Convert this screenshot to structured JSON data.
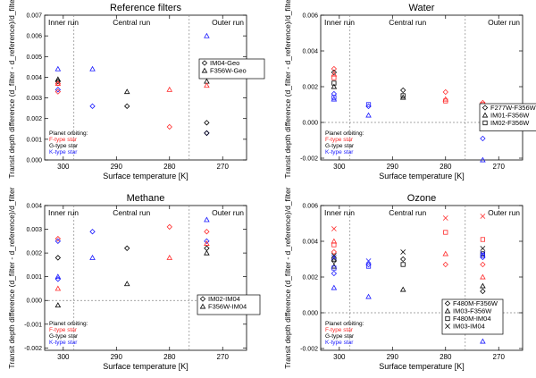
{
  "chart_data": [
    {
      "type": "scatter",
      "title": "Reference filters",
      "xlabel": "Surface temperature [K]",
      "ylabel": "Transit depth difference (d_filter - d_reference)/d_filter",
      "xlim": [
        303.5,
        265.5
      ],
      "ylim": [
        0,
        0.007
      ],
      "xticks": [
        {
          "v": 300,
          "label": "300"
        },
        {
          "v": 290,
          "label": "290"
        },
        {
          "v": 280,
          "label": "280"
        },
        {
          "v": 270,
          "label": "270"
        }
      ],
      "yticks": [
        {
          "v": 0,
          "label": "0.000"
        },
        {
          "v": 0.001,
          "label": "0.001"
        },
        {
          "v": 0.002,
          "label": "0.002"
        },
        {
          "v": 0.003,
          "label": "0.003"
        },
        {
          "v": 0.004,
          "label": "0.004"
        },
        {
          "v": 0.005,
          "label": "0.005"
        },
        {
          "v": 0.006,
          "label": "0.006"
        },
        {
          "v": 0.007,
          "label": "0.007"
        }
      ],
      "zero_line": false,
      "regions": [
        {
          "name": "Inner run",
          "from": 303.5,
          "to": 298
        },
        {
          "name": "Central run",
          "from": 298,
          "to": 276.3
        },
        {
          "name": "Outer run",
          "from": 276.3,
          "to": 265.5
        }
      ],
      "legend_label": "Planet orbiting:",
      "star_types": [
        {
          "name": "F-type star",
          "color": "#ff2a2a"
        },
        {
          "name": "G-type star",
          "color": "#000000"
        },
        {
          "name": "K-type star",
          "color": "#1a1aff"
        }
      ],
      "series": [
        {
          "name": "IM04-Geo",
          "marker": "diamond",
          "points": [
            {
              "x": 301,
              "y": 0.0037,
              "c": "F"
            },
            {
              "x": 301,
              "y": 0.0038,
              "c": "G"
            },
            {
              "x": 301,
              "y": 0.0034,
              "c": "K"
            },
            {
              "x": 301,
              "y": 0.0033,
              "c": "F"
            },
            {
              "x": 294.5,
              "y": 0.0026,
              "c": "K"
            },
            {
              "x": 288,
              "y": 0.0026,
              "c": "G"
            },
            {
              "x": 280,
              "y": 0.0016,
              "c": "F"
            },
            {
              "x": 273,
              "y": 0.0018,
              "c": "G"
            },
            {
              "x": 273,
              "y": 0.0013,
              "c": "K"
            },
            {
              "x": 273,
              "y": 0.0013,
              "c": "G"
            }
          ]
        },
        {
          "name": "F356W-Geo",
          "marker": "triangle",
          "points": [
            {
              "x": 301,
              "y": 0.0044,
              "c": "K"
            },
            {
              "x": 301,
              "y": 0.0039,
              "c": "G"
            },
            {
              "x": 301,
              "y": 0.0037,
              "c": "F"
            },
            {
              "x": 294.5,
              "y": 0.0044,
              "c": "K"
            },
            {
              "x": 288,
              "y": 0.0033,
              "c": "G"
            },
            {
              "x": 280,
              "y": 0.0034,
              "c": "F"
            },
            {
              "x": 273,
              "y": 0.006,
              "c": "K"
            },
            {
              "x": 273,
              "y": 0.0038,
              "c": "G"
            },
            {
              "x": 273,
              "y": 0.0036,
              "c": "F"
            }
          ]
        }
      ]
    },
    {
      "type": "scatter",
      "title": "Water",
      "xlabel": "Surface temperature [K]",
      "ylabel": "Transit depth difference (d_filter - d_reference)/d_filter",
      "xlim": [
        303.5,
        265.5
      ],
      "ylim": [
        -0.0021,
        0.006
      ],
      "xticks": [
        {
          "v": 300,
          "label": "300"
        },
        {
          "v": 290,
          "label": "290"
        },
        {
          "v": 280,
          "label": "280"
        },
        {
          "v": 270,
          "label": "270"
        }
      ],
      "yticks": [
        {
          "v": -0.002,
          "label": "-0.002"
        },
        {
          "v": 0,
          "label": "0.000"
        },
        {
          "v": 0.002,
          "label": "0.002"
        },
        {
          "v": 0.004,
          "label": "0.004"
        },
        {
          "v": 0.006,
          "label": "0.006"
        }
      ],
      "zero_line": true,
      "regions": [
        {
          "name": "Inner run",
          "from": 303.5,
          "to": 298
        },
        {
          "name": "Central run",
          "from": 298,
          "to": 276.3
        },
        {
          "name": "Outer run",
          "from": 276.3,
          "to": 265.5
        }
      ],
      "legend_label": "Planet orbiting:",
      "star_types": [
        {
          "name": "F-type star",
          "color": "#ff2a2a"
        },
        {
          "name": "G-type star",
          "color": "#000000"
        },
        {
          "name": "K-type star",
          "color": "#1a1aff"
        }
      ],
      "series": [
        {
          "name": "F277W-F356W",
          "marker": "diamond",
          "points": [
            {
              "x": 301,
              "y": 0.003,
              "c": "F"
            },
            {
              "x": 301,
              "y": 0.0028,
              "c": "G"
            },
            {
              "x": 301,
              "y": 0.0016,
              "c": "K"
            },
            {
              "x": 294.5,
              "y": 0.0009,
              "c": "K"
            },
            {
              "x": 288,
              "y": 0.0018,
              "c": "G"
            },
            {
              "x": 280,
              "y": 0.0017,
              "c": "F"
            },
            {
              "x": 273,
              "y": 0.0011,
              "c": "F"
            },
            {
              "x": 273,
              "y": 0.0005,
              "c": "G"
            },
            {
              "x": 273,
              "y": -0.0009,
              "c": "K"
            }
          ]
        },
        {
          "name": "IM01-F356W",
          "marker": "triangle",
          "points": [
            {
              "x": 301,
              "y": 0.0027,
              "c": "F"
            },
            {
              "x": 301,
              "y": 0.002,
              "c": "G"
            },
            {
              "x": 301,
              "y": 0.0013,
              "c": "K"
            },
            {
              "x": 294.5,
              "y": 0.0004,
              "c": "K"
            },
            {
              "x": 288,
              "y": 0.0014,
              "c": "G"
            },
            {
              "x": 280,
              "y": 0.0013,
              "c": "F"
            },
            {
              "x": 273,
              "y": 0.0008,
              "c": "F"
            },
            {
              "x": 273,
              "y": 0.0001,
              "c": "G"
            },
            {
              "x": 273,
              "y": -0.0021,
              "c": "K"
            }
          ]
        },
        {
          "name": "IM02-F356W",
          "marker": "square",
          "points": [
            {
              "x": 301,
              "y": 0.0025,
              "c": "F"
            },
            {
              "x": 301,
              "y": 0.0022,
              "c": "G"
            },
            {
              "x": 301,
              "y": 0.0014,
              "c": "K"
            },
            {
              "x": 294.5,
              "y": 0.001,
              "c": "K"
            },
            {
              "x": 288,
              "y": 0.0015,
              "c": "G"
            },
            {
              "x": 280,
              "y": 0.0012,
              "c": "F"
            },
            {
              "x": 273,
              "y": 0.001,
              "c": "F"
            },
            {
              "x": 273,
              "y": 0.0007,
              "c": "G"
            },
            {
              "x": 273,
              "y": 0.0006,
              "c": "K"
            }
          ]
        }
      ]
    },
    {
      "type": "scatter",
      "title": "Methane",
      "xlabel": "Surface temperature [K]",
      "ylabel": "Transit depth difference (d_filter - d_reference)/d_filter",
      "xlim": [
        303.5,
        265.5
      ],
      "ylim": [
        -0.0021,
        0.004
      ],
      "xticks": [
        {
          "v": 300,
          "label": "300"
        },
        {
          "v": 290,
          "label": "290"
        },
        {
          "v": 280,
          "label": "280"
        },
        {
          "v": 270,
          "label": "270"
        }
      ],
      "yticks": [
        {
          "v": -0.002,
          "label": "-0.002"
        },
        {
          "v": -0.001,
          "label": "-0.001"
        },
        {
          "v": 0,
          "label": "0.000"
        },
        {
          "v": 0.001,
          "label": "0.001"
        },
        {
          "v": 0.002,
          "label": "0.002"
        },
        {
          "v": 0.003,
          "label": "0.003"
        },
        {
          "v": 0.004,
          "label": "0.004"
        }
      ],
      "zero_line": true,
      "regions": [
        {
          "name": "Inner run",
          "from": 303.5,
          "to": 298
        },
        {
          "name": "Central run",
          "from": 298,
          "to": 276.3
        },
        {
          "name": "Outer run",
          "from": 276.3,
          "to": 265.5
        }
      ],
      "legend_label": "Planet orbiting:",
      "star_types": [
        {
          "name": "F-type star",
          "color": "#ff2a2a"
        },
        {
          "name": "G-type star",
          "color": "#000000"
        },
        {
          "name": "K-type star",
          "color": "#1a1aff"
        }
      ],
      "series": [
        {
          "name": "IM02-IM04",
          "marker": "diamond",
          "points": [
            {
              "x": 301,
              "y": 0.0026,
              "c": "F"
            },
            {
              "x": 301,
              "y": 0.0025,
              "c": "K"
            },
            {
              "x": 301,
              "y": 0.0018,
              "c": "G"
            },
            {
              "x": 301,
              "y": 0.0009,
              "c": "K"
            },
            {
              "x": 294.5,
              "y": 0.0029,
              "c": "K"
            },
            {
              "x": 288,
              "y": 0.0022,
              "c": "G"
            },
            {
              "x": 280,
              "y": 0.0031,
              "c": "F"
            },
            {
              "x": 273,
              "y": 0.0029,
              "c": "F"
            },
            {
              "x": 273,
              "y": 0.0022,
              "c": "G"
            },
            {
              "x": 273,
              "y": 0.0025,
              "c": "K"
            }
          ]
        },
        {
          "name": "F356W-IM04",
          "marker": "triangle",
          "points": [
            {
              "x": 301,
              "y": 0.001,
              "c": "K"
            },
            {
              "x": 301,
              "y": 0.0005,
              "c": "F"
            },
            {
              "x": 301,
              "y": -0.0002,
              "c": "G"
            },
            {
              "x": 294.5,
              "y": 0.0018,
              "c": "K"
            },
            {
              "x": 288,
              "y": 0.0007,
              "c": "G"
            },
            {
              "x": 280,
              "y": 0.0018,
              "c": "F"
            },
            {
              "x": 273,
              "y": 0.0024,
              "c": "F"
            },
            {
              "x": 273,
              "y": 0.002,
              "c": "G"
            },
            {
              "x": 273,
              "y": 0.0034,
              "c": "K"
            }
          ]
        }
      ]
    },
    {
      "type": "scatter",
      "title": "Ozone",
      "xlabel": "Surface temperature [K]",
      "ylabel": "Transit depth difference (d_filter - d_reference)/d_filter",
      "xlim": [
        303.5,
        265.5
      ],
      "ylim": [
        -0.0021,
        0.006
      ],
      "xticks": [
        {
          "v": 300,
          "label": "300"
        },
        {
          "v": 290,
          "label": "290"
        },
        {
          "v": 280,
          "label": "280"
        },
        {
          "v": 270,
          "label": "270"
        }
      ],
      "yticks": [
        {
          "v": -0.002,
          "label": "-0.002"
        },
        {
          "v": 0,
          "label": "0.000"
        },
        {
          "v": 0.002,
          "label": "0.002"
        },
        {
          "v": 0.004,
          "label": "0.004"
        },
        {
          "v": 0.006,
          "label": "0.006"
        }
      ],
      "zero_line": true,
      "regions": [
        {
          "name": "Inner run",
          "from": 303.5,
          "to": 298
        },
        {
          "name": "Central run",
          "from": 298,
          "to": 276.3
        },
        {
          "name": "Outer run",
          "from": 276.3,
          "to": 265.5
        }
      ],
      "legend_label": "Planet orbiting:",
      "star_types": [
        {
          "name": "F-type star",
          "color": "#ff2a2a"
        },
        {
          "name": "G-type star",
          "color": "#000000"
        },
        {
          "name": "K-type star",
          "color": "#1a1aff"
        }
      ],
      "series": [
        {
          "name": "F480M-F356W",
          "marker": "diamond",
          "points": [
            {
              "x": 301,
              "y": 0.0034,
              "c": "F"
            },
            {
              "x": 301,
              "y": 0.0029,
              "c": "G"
            },
            {
              "x": 301,
              "y": 0.0022,
              "c": "K"
            },
            {
              "x": 294.5,
              "y": 0.0027,
              "c": "K"
            },
            {
              "x": 288,
              "y": 0.003,
              "c": "G"
            },
            {
              "x": 280,
              "y": 0.0027,
              "c": "F"
            },
            {
              "x": 273,
              "y": 0.0027,
              "c": "F"
            },
            {
              "x": 273,
              "y": 0.0012,
              "c": "G"
            },
            {
              "x": 273,
              "y": 0.0031,
              "c": "K"
            }
          ]
        },
        {
          "name": "IM03-F356W",
          "marker": "triangle",
          "points": [
            {
              "x": 301,
              "y": 0.004,
              "c": "F"
            },
            {
              "x": 301,
              "y": 0.0026,
              "c": "G"
            },
            {
              "x": 301,
              "y": 0.0014,
              "c": "K"
            },
            {
              "x": 294.5,
              "y": 0.0009,
              "c": "K"
            },
            {
              "x": 288,
              "y": 0.0013,
              "c": "G"
            },
            {
              "x": 280,
              "y": 0.0033,
              "c": "F"
            },
            {
              "x": 273,
              "y": 0.002,
              "c": "F"
            },
            {
              "x": 273,
              "y": 0.0015,
              "c": "G"
            },
            {
              "x": 273,
              "y": -0.0016,
              "c": "K"
            }
          ]
        },
        {
          "name": "F480M-IM04",
          "marker": "square",
          "points": [
            {
              "x": 301,
              "y": 0.0038,
              "c": "F"
            },
            {
              "x": 301,
              "y": 0.003,
              "c": "G"
            },
            {
              "x": 301,
              "y": 0.0025,
              "c": "K"
            },
            {
              "x": 294.5,
              "y": 0.0026,
              "c": "K"
            },
            {
              "x": 288,
              "y": 0.0027,
              "c": "G"
            },
            {
              "x": 280,
              "y": 0.0045,
              "c": "F"
            },
            {
              "x": 273,
              "y": 0.0041,
              "c": "F"
            },
            {
              "x": 273,
              "y": 0.0033,
              "c": "G"
            },
            {
              "x": 273,
              "y": 0.0032,
              "c": "K"
            }
          ]
        },
        {
          "name": "IM03-IM04",
          "marker": "cross",
          "points": [
            {
              "x": 301,
              "y": 0.0047,
              "c": "F"
            },
            {
              "x": 301,
              "y": 0.0032,
              "c": "G"
            },
            {
              "x": 301,
              "y": 0.0031,
              "c": "K"
            },
            {
              "x": 294.5,
              "y": 0.0029,
              "c": "K"
            },
            {
              "x": 288,
              "y": 0.0034,
              "c": "G"
            },
            {
              "x": 280,
              "y": 0.0053,
              "c": "F"
            },
            {
              "x": 273,
              "y": 0.0054,
              "c": "F"
            },
            {
              "x": 273,
              "y": 0.0036,
              "c": "G"
            },
            {
              "x": 273,
              "y": 0.0033,
              "c": "K"
            }
          ]
        }
      ]
    }
  ]
}
